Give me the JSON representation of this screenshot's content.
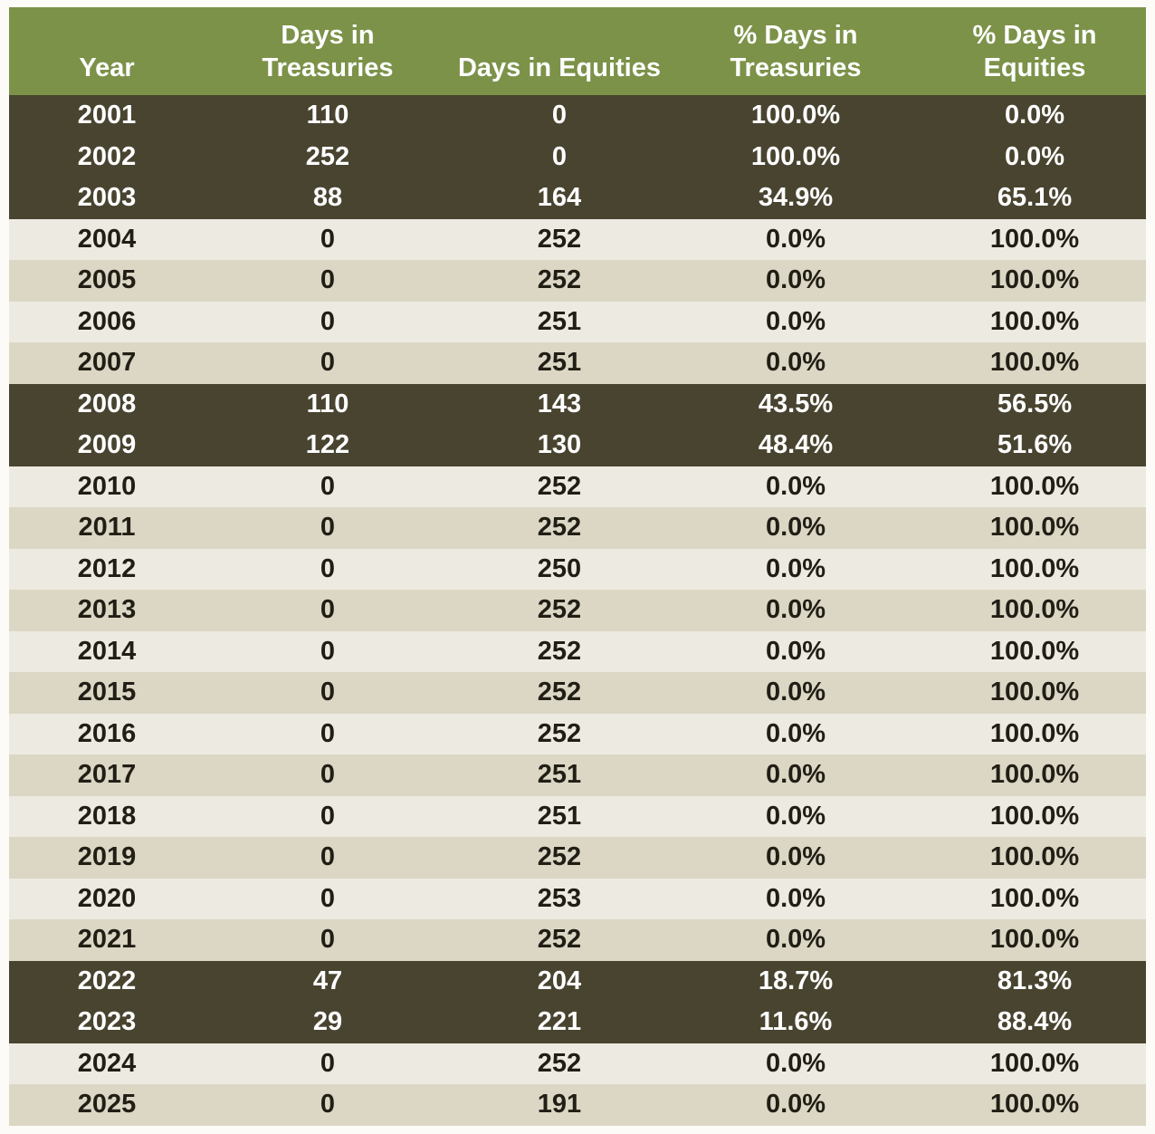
{
  "colors": {
    "header_green": "#7c9249",
    "dark_row": "#484430",
    "light_row": "#edebe1",
    "beige_row": "#dcd7c5",
    "header_text": "#ffffff",
    "dark_row_text": "#ffffff",
    "body_text": "#211e15"
  },
  "table": {
    "columns": [
      {
        "label": "Year",
        "lines": [
          "Year"
        ]
      },
      {
        "label": "Days in Treasuries",
        "lines": [
          "Days in",
          "Treasuries"
        ]
      },
      {
        "label": "Days in Equities",
        "lines": [
          "Days in Equities"
        ]
      },
      {
        "label": "% Days in Treasuries",
        "lines": [
          "% Days in",
          "Treasuries"
        ]
      },
      {
        "label": "% Days in Equities",
        "lines": [
          "% Days in",
          "Equities"
        ]
      }
    ],
    "rows": [
      {
        "year": "2001",
        "days_treasuries": "110",
        "days_equities": "0",
        "pct_treasuries": "100.0%",
        "pct_equities": "0.0%",
        "style": "dark"
      },
      {
        "year": "2002",
        "days_treasuries": "252",
        "days_equities": "0",
        "pct_treasuries": "100.0%",
        "pct_equities": "0.0%",
        "style": "dark"
      },
      {
        "year": "2003",
        "days_treasuries": "88",
        "days_equities": "164",
        "pct_treasuries": "34.9%",
        "pct_equities": "65.1%",
        "style": "dark"
      },
      {
        "year": "2004",
        "days_treasuries": "0",
        "days_equities": "252",
        "pct_treasuries": "0.0%",
        "pct_equities": "100.0%",
        "style": "light"
      },
      {
        "year": "2005",
        "days_treasuries": "0",
        "days_equities": "252",
        "pct_treasuries": "0.0%",
        "pct_equities": "100.0%",
        "style": "beige"
      },
      {
        "year": "2006",
        "days_treasuries": "0",
        "days_equities": "251",
        "pct_treasuries": "0.0%",
        "pct_equities": "100.0%",
        "style": "light"
      },
      {
        "year": "2007",
        "days_treasuries": "0",
        "days_equities": "251",
        "pct_treasuries": "0.0%",
        "pct_equities": "100.0%",
        "style": "beige"
      },
      {
        "year": "2008",
        "days_treasuries": "110",
        "days_equities": "143",
        "pct_treasuries": "43.5%",
        "pct_equities": "56.5%",
        "style": "dark"
      },
      {
        "year": "2009",
        "days_treasuries": "122",
        "days_equities": "130",
        "pct_treasuries": "48.4%",
        "pct_equities": "51.6%",
        "style": "dark"
      },
      {
        "year": "2010",
        "days_treasuries": "0",
        "days_equities": "252",
        "pct_treasuries": "0.0%",
        "pct_equities": "100.0%",
        "style": "light"
      },
      {
        "year": "2011",
        "days_treasuries": "0",
        "days_equities": "252",
        "pct_treasuries": "0.0%",
        "pct_equities": "100.0%",
        "style": "beige"
      },
      {
        "year": "2012",
        "days_treasuries": "0",
        "days_equities": "250",
        "pct_treasuries": "0.0%",
        "pct_equities": "100.0%",
        "style": "light"
      },
      {
        "year": "2013",
        "days_treasuries": "0",
        "days_equities": "252",
        "pct_treasuries": "0.0%",
        "pct_equities": "100.0%",
        "style": "beige"
      },
      {
        "year": "2014",
        "days_treasuries": "0",
        "days_equities": "252",
        "pct_treasuries": "0.0%",
        "pct_equities": "100.0%",
        "style": "light"
      },
      {
        "year": "2015",
        "days_treasuries": "0",
        "days_equities": "252",
        "pct_treasuries": "0.0%",
        "pct_equities": "100.0%",
        "style": "beige"
      },
      {
        "year": "2016",
        "days_treasuries": "0",
        "days_equities": "252",
        "pct_treasuries": "0.0%",
        "pct_equities": "100.0%",
        "style": "light"
      },
      {
        "year": "2017",
        "days_treasuries": "0",
        "days_equities": "251",
        "pct_treasuries": "0.0%",
        "pct_equities": "100.0%",
        "style": "beige"
      },
      {
        "year": "2018",
        "days_treasuries": "0",
        "days_equities": "251",
        "pct_treasuries": "0.0%",
        "pct_equities": "100.0%",
        "style": "light"
      },
      {
        "year": "2019",
        "days_treasuries": "0",
        "days_equities": "252",
        "pct_treasuries": "0.0%",
        "pct_equities": "100.0%",
        "style": "beige"
      },
      {
        "year": "2020",
        "days_treasuries": "0",
        "days_equities": "253",
        "pct_treasuries": "0.0%",
        "pct_equities": "100.0%",
        "style": "light"
      },
      {
        "year": "2021",
        "days_treasuries": "0",
        "days_equities": "252",
        "pct_treasuries": "0.0%",
        "pct_equities": "100.0%",
        "style": "beige"
      },
      {
        "year": "2022",
        "days_treasuries": "47",
        "days_equities": "204",
        "pct_treasuries": "18.7%",
        "pct_equities": "81.3%",
        "style": "dark"
      },
      {
        "year": "2023",
        "days_treasuries": "29",
        "days_equities": "221",
        "pct_treasuries": "11.6%",
        "pct_equities": "88.4%",
        "style": "dark"
      },
      {
        "year": "2024",
        "days_treasuries": "0",
        "days_equities": "252",
        "pct_treasuries": "0.0%",
        "pct_equities": "100.0%",
        "style": "light"
      },
      {
        "year": "2025",
        "days_treasuries": "0",
        "days_equities": "191",
        "pct_treasuries": "0.0%",
        "pct_equities": "100.0%",
        "style": "beige"
      }
    ]
  },
  "chart_data": {
    "type": "table",
    "title": "",
    "columns": [
      "Year",
      "Days in Treasuries",
      "Days in Equities",
      "% Days in Treasuries",
      "% Days in Equities"
    ],
    "years": [
      2001,
      2002,
      2003,
      2004,
      2005,
      2006,
      2007,
      2008,
      2009,
      2010,
      2011,
      2012,
      2013,
      2014,
      2015,
      2016,
      2017,
      2018,
      2019,
      2020,
      2021,
      2022,
      2023,
      2024,
      2025
    ],
    "days_in_treasuries": [
      110,
      252,
      88,
      0,
      0,
      0,
      0,
      110,
      122,
      0,
      0,
      0,
      0,
      0,
      0,
      0,
      0,
      0,
      0,
      0,
      0,
      47,
      29,
      0,
      0
    ],
    "days_in_equities": [
      0,
      0,
      164,
      252,
      252,
      251,
      251,
      143,
      130,
      252,
      252,
      250,
      252,
      252,
      252,
      252,
      251,
      251,
      252,
      253,
      252,
      204,
      221,
      252,
      191
    ],
    "pct_days_in_treasuries": [
      100.0,
      100.0,
      34.9,
      0.0,
      0.0,
      0.0,
      0.0,
      43.5,
      48.4,
      0.0,
      0.0,
      0.0,
      0.0,
      0.0,
      0.0,
      0.0,
      0.0,
      0.0,
      0.0,
      0.0,
      0.0,
      18.7,
      11.6,
      0.0,
      0.0
    ],
    "pct_days_in_equities": [
      0.0,
      0.0,
      65.1,
      100.0,
      100.0,
      100.0,
      100.0,
      56.5,
      51.6,
      100.0,
      100.0,
      100.0,
      100.0,
      100.0,
      100.0,
      100.0,
      100.0,
      100.0,
      100.0,
      100.0,
      100.0,
      81.3,
      88.4,
      100.0,
      100.0
    ],
    "highlighted_years": [
      2001,
      2002,
      2003,
      2008,
      2009,
      2022,
      2023
    ],
    "layout_hints": "header row green with white bold text; highlighted year blocks dark olive with white text; remaining rows alternate cream/beige; all cells center-aligned"
  }
}
